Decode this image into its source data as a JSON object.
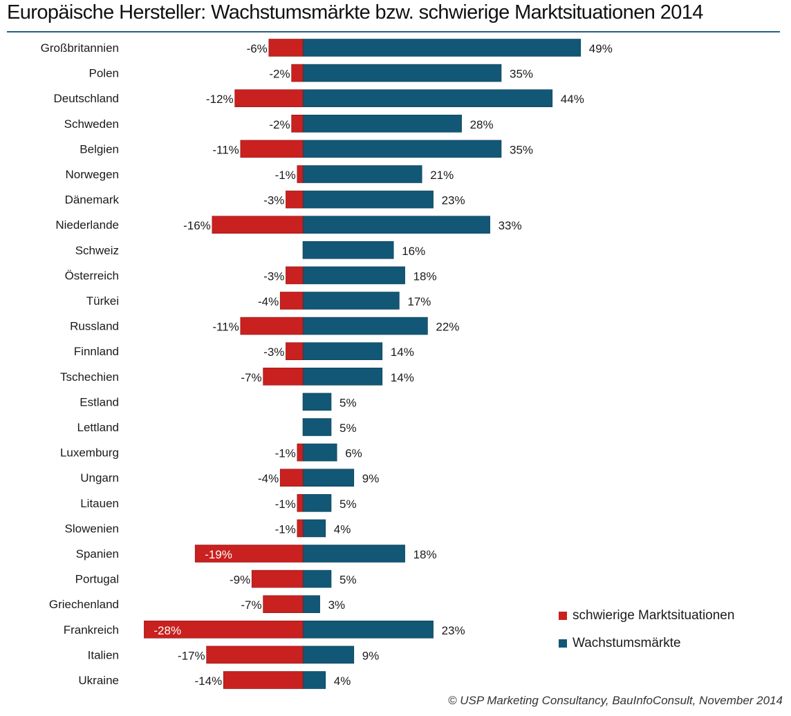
{
  "colors": {
    "negative": "#c8211f",
    "positive": "#125775",
    "title_rule": "#1f5f82"
  },
  "footer": "© USP Marketing Consultancy, BauInfoConsult, November 2014",
  "chart_data": {
    "type": "bar",
    "orientation": "horizontal",
    "stacking": "diverging",
    "title": "Europäische Hersteller: Wachstumsmärkte bzw. schwierige Marktsituationen 2014",
    "xlabel": "",
    "ylabel": "",
    "grid": false,
    "legend_position": "bottom-right",
    "categories": [
      "Großbritannien",
      "Polen",
      "Deutschland",
      "Schweden",
      "Belgien",
      "Norwegen",
      "Dänemark",
      "Niederlande",
      "Schweiz",
      "Österreich",
      "Türkei",
      "Russland",
      "Finnland",
      "Tschechien",
      "Estland",
      "Lettland",
      "Luxemburg",
      "Ungarn",
      "Litauen",
      "Slowenien",
      "Spanien",
      "Portugal",
      "Griechenland",
      "Frankreich",
      "Italien",
      "Ukraine"
    ],
    "series": [
      {
        "name": "schwierige Marktsituationen",
        "values": [
          -6,
          -2,
          -12,
          -2,
          -11,
          -1,
          -3,
          -16,
          null,
          -3,
          -4,
          -11,
          -3,
          -7,
          null,
          null,
          -1,
          -4,
          -1,
          -1,
          -19,
          -9,
          -7,
          -28,
          -17,
          -14
        ],
        "labels": [
          "-6%",
          "-2%",
          "-12%",
          "-2%",
          "-11%",
          "-1%",
          "-3%",
          "-16%",
          "",
          "-3%",
          "-4%",
          "-11%",
          "-3%",
          "-7%",
          "",
          "",
          "-1%",
          "-4%",
          "-1%",
          "-1%",
          "-19%",
          "-9%",
          "-7%",
          "-28%",
          "-17%",
          "-14%"
        ]
      },
      {
        "name": "Wachstumsmärkte",
        "values": [
          49,
          35,
          44,
          28,
          35,
          21,
          23,
          33,
          16,
          18,
          17,
          22,
          14,
          14,
          5,
          5,
          6,
          9,
          5,
          4,
          18,
          5,
          3,
          23,
          9,
          4
        ],
        "labels": [
          "49%",
          "35%",
          "44%",
          "28%",
          "35%",
          "21%",
          "23%",
          "33%",
          "16%",
          "18%",
          "17%",
          "22%",
          "14%",
          "14%",
          "5%",
          "5%",
          "6%",
          "9%",
          "5%",
          "4%",
          "18%",
          "5%",
          "3%",
          "23%",
          "9%",
          "4%"
        ]
      }
    ]
  }
}
